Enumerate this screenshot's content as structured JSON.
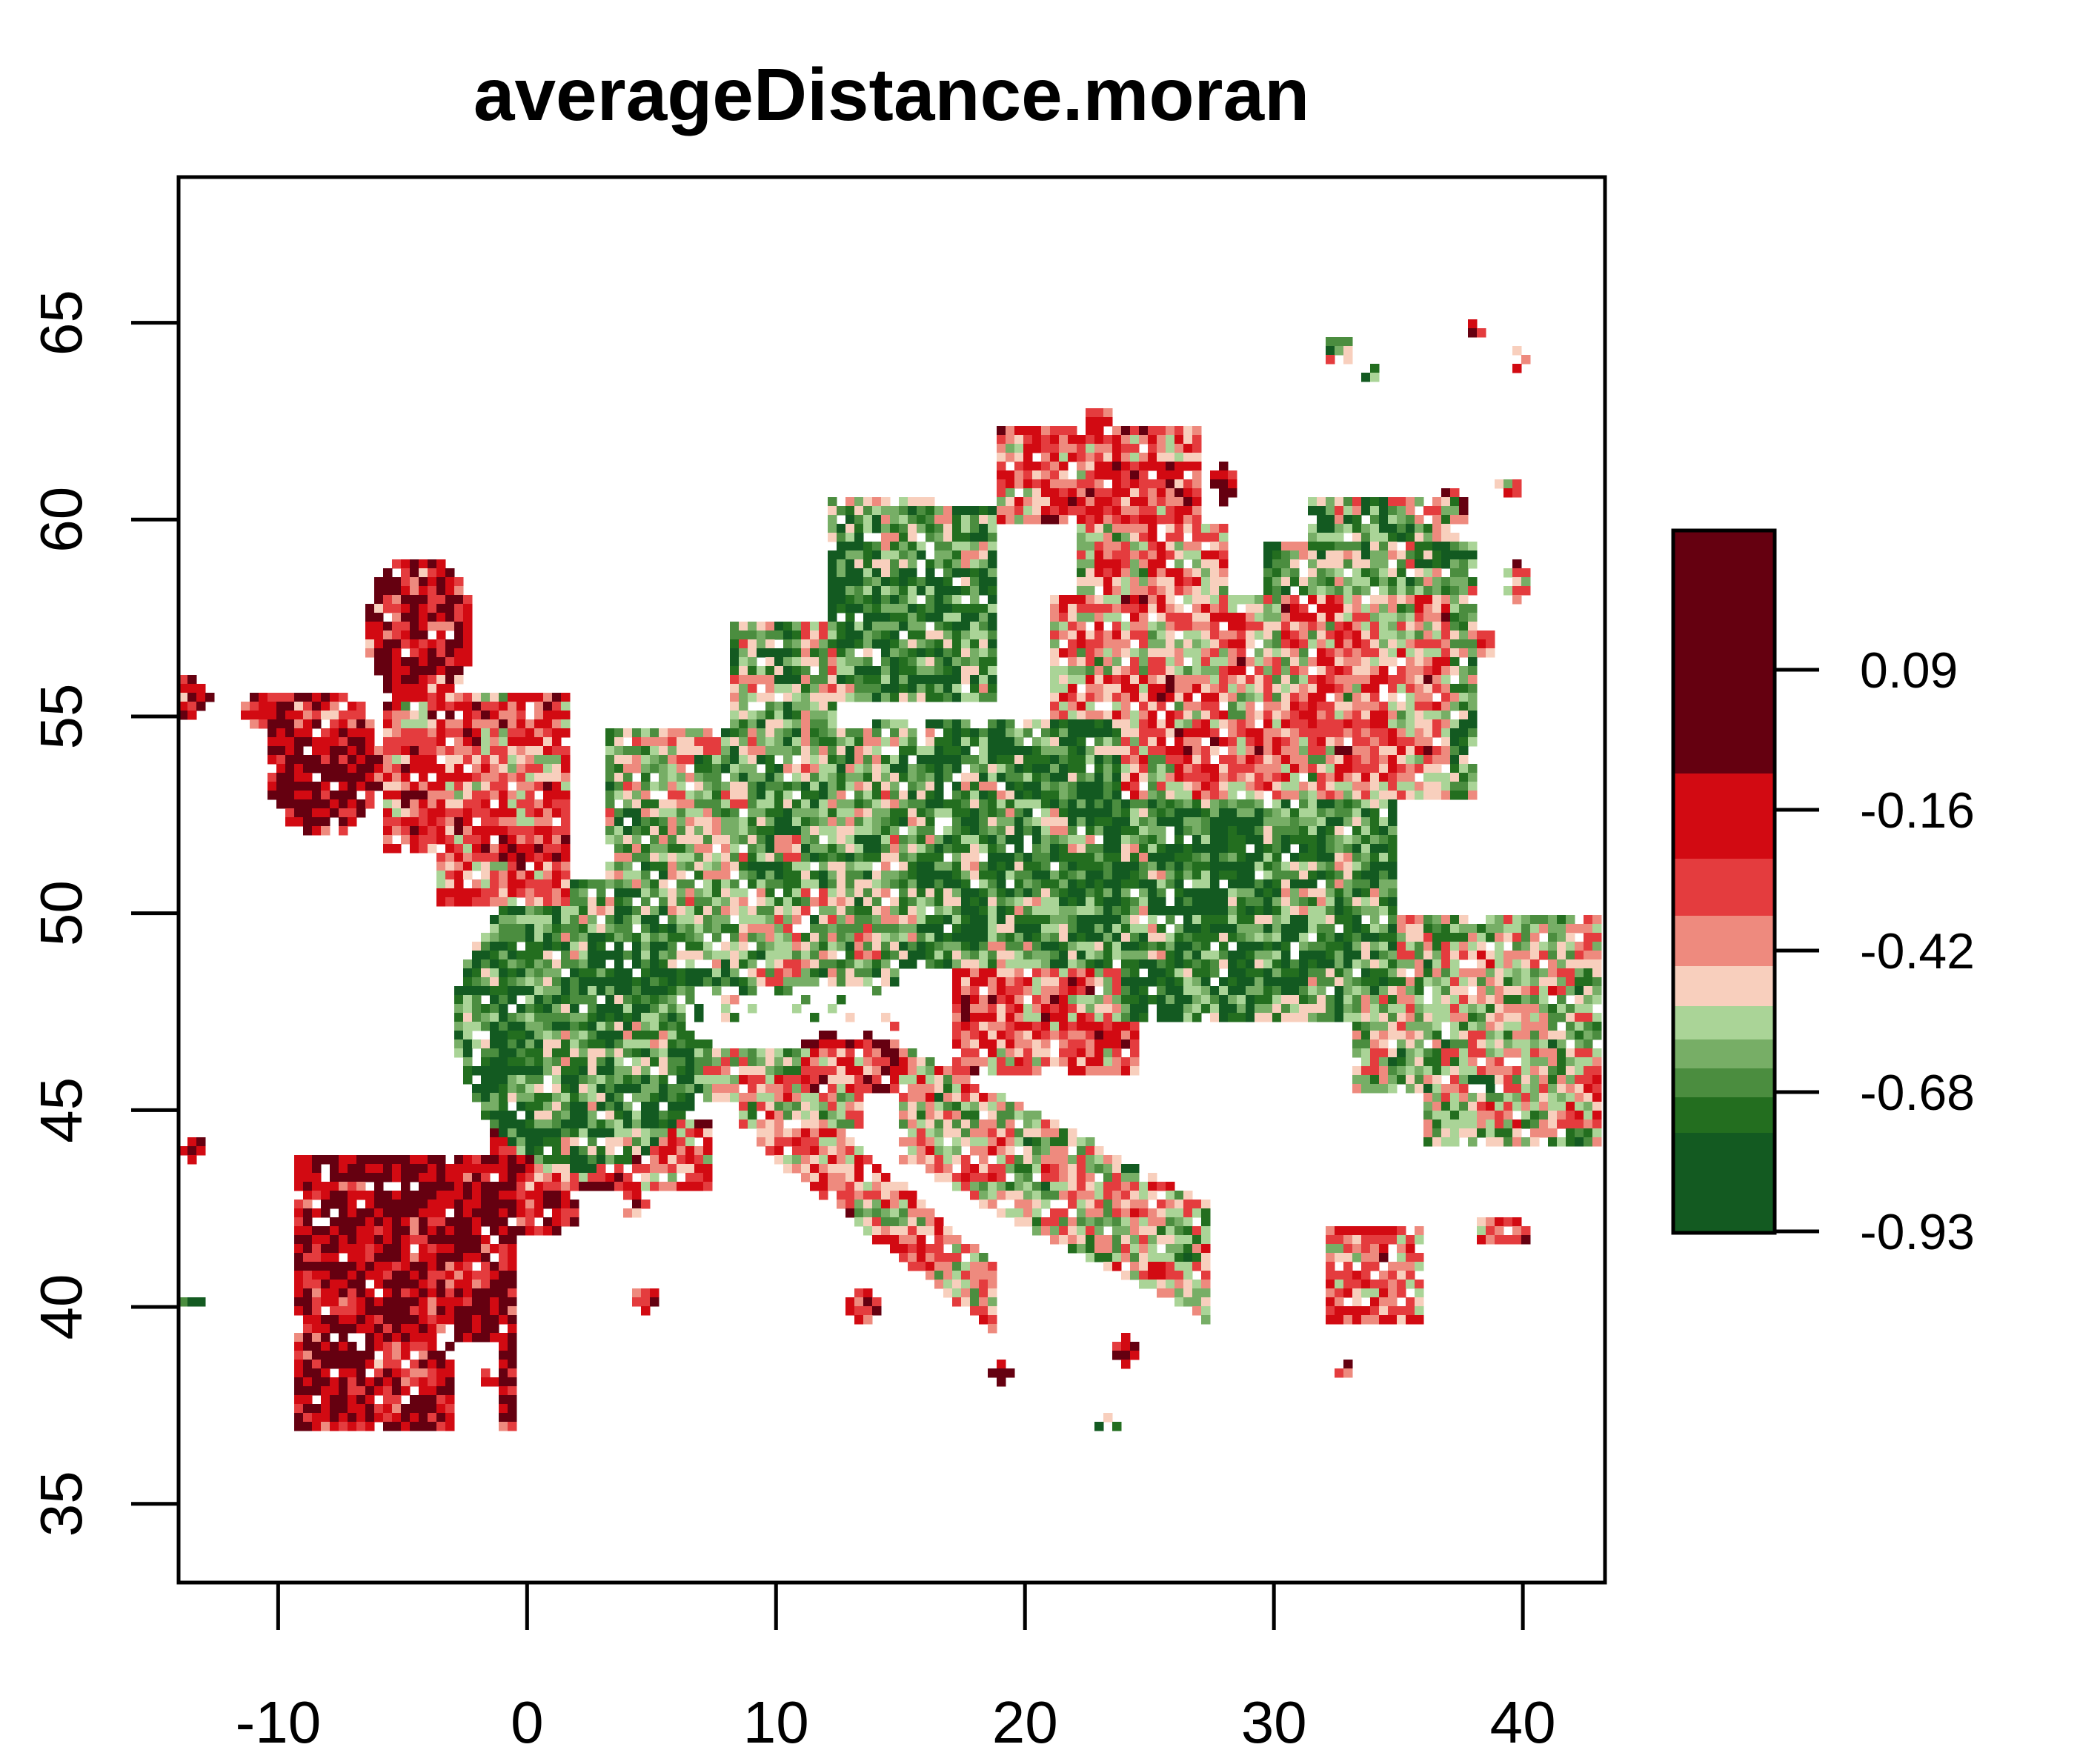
{
  "title": "averageDistance.moran",
  "x_axis": {
    "ticks": [
      -10,
      0,
      10,
      20,
      30,
      40
    ],
    "tick_labels": [
      "-10",
      "0",
      "10",
      "20",
      "30",
      "40"
    ],
    "range": [
      -14,
      43.3
    ]
  },
  "y_axis": {
    "ticks": [
      35,
      40,
      45,
      50,
      55,
      60,
      65
    ],
    "tick_labels": [
      "35",
      "40",
      "45",
      "50",
      "55",
      "60",
      "65"
    ],
    "range": [
      33,
      68.7
    ]
  },
  "legend": {
    "tick_labels": [
      "0.09",
      "-0.16",
      "-0.42",
      "-0.68",
      "-0.93"
    ],
    "colors": [
      "#650010",
      "#D20A12",
      "#E43C3E",
      "#EE8A7E",
      "#F8CFBD",
      "#AAD497",
      "#77AE66",
      "#4B8D3F",
      "#236E1F",
      "#135A21"
    ]
  },
  "colors": {
    "axis": "#000000",
    "background": "#ffffff"
  }
}
